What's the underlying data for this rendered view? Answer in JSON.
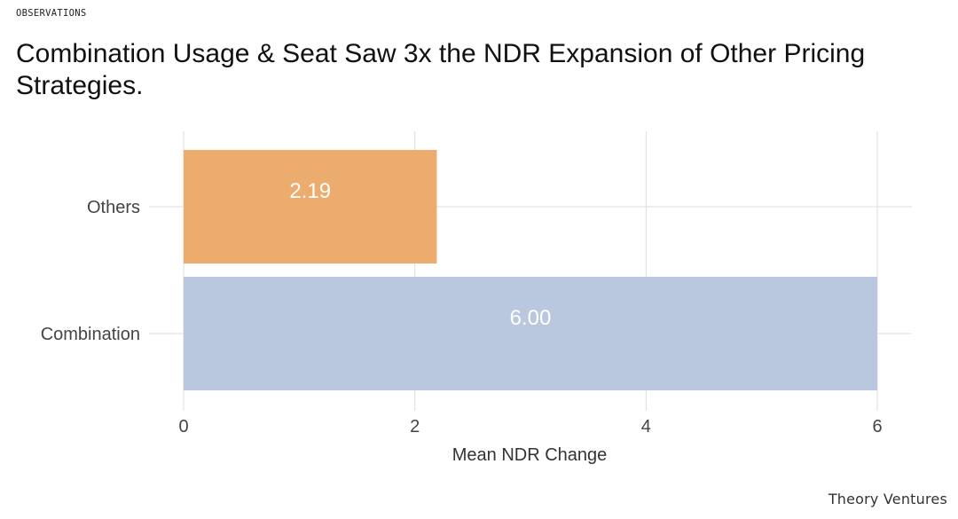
{
  "header": {
    "eyebrow": "OBSERVATIONS",
    "title": "Combination Usage & Seat Saw 3x the NDR Expansion of Other Pricing Strategies."
  },
  "footer": {
    "brand": "Theory Ventures"
  },
  "chart_data": {
    "type": "bar",
    "orientation": "horizontal",
    "categories": [
      "Others",
      "Combination"
    ],
    "values": [
      2.19,
      6.0
    ],
    "data_labels": [
      "2.19",
      "6.00"
    ],
    "bar_colors": [
      "#EBAC6E",
      "#B9C8DF"
    ],
    "xlabel": "Mean NDR Change",
    "ylabel": "",
    "xlim": [
      0,
      6
    ],
    "x_ticks": [
      0,
      2,
      4,
      6
    ],
    "x_tick_labels": [
      "0",
      "2",
      "4",
      "6"
    ],
    "grid": true,
    "legend": "none"
  }
}
